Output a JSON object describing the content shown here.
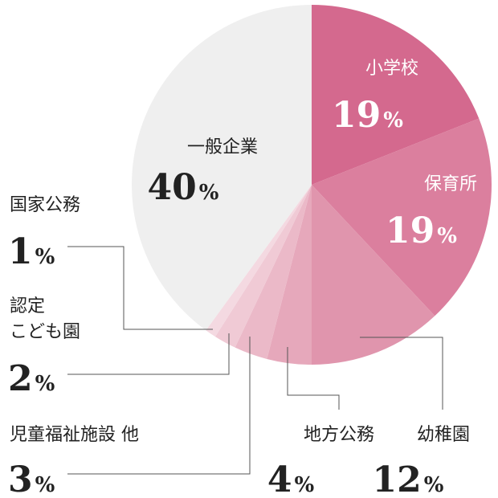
{
  "chart_data": {
    "type": "pie",
    "unit": "%",
    "slices": [
      {
        "label": "小学校",
        "value": 19,
        "color": "#d4698e"
      },
      {
        "label": "保育所",
        "value": 19,
        "color": "#db7f9e"
      },
      {
        "label": "幼稚園",
        "value": 12,
        "color": "#e095ad"
      },
      {
        "label": "地方公務",
        "value": 4,
        "color": "#e6a8bb"
      },
      {
        "label": "児童福祉施設 他",
        "value": 3,
        "color": "#ebb9c8"
      },
      {
        "label": "認定\nこども園",
        "value": 2,
        "color": "#f0cad5"
      },
      {
        "label": "国家公務",
        "value": 1,
        "color": "#f4d9e1"
      },
      {
        "label": "一般企業",
        "value": 40,
        "color": "#efefef"
      }
    ],
    "value_labels": [
      "19",
      "19",
      "12",
      "4",
      "3",
      "2",
      "1",
      "40"
    ],
    "pct_symbol": "%"
  }
}
